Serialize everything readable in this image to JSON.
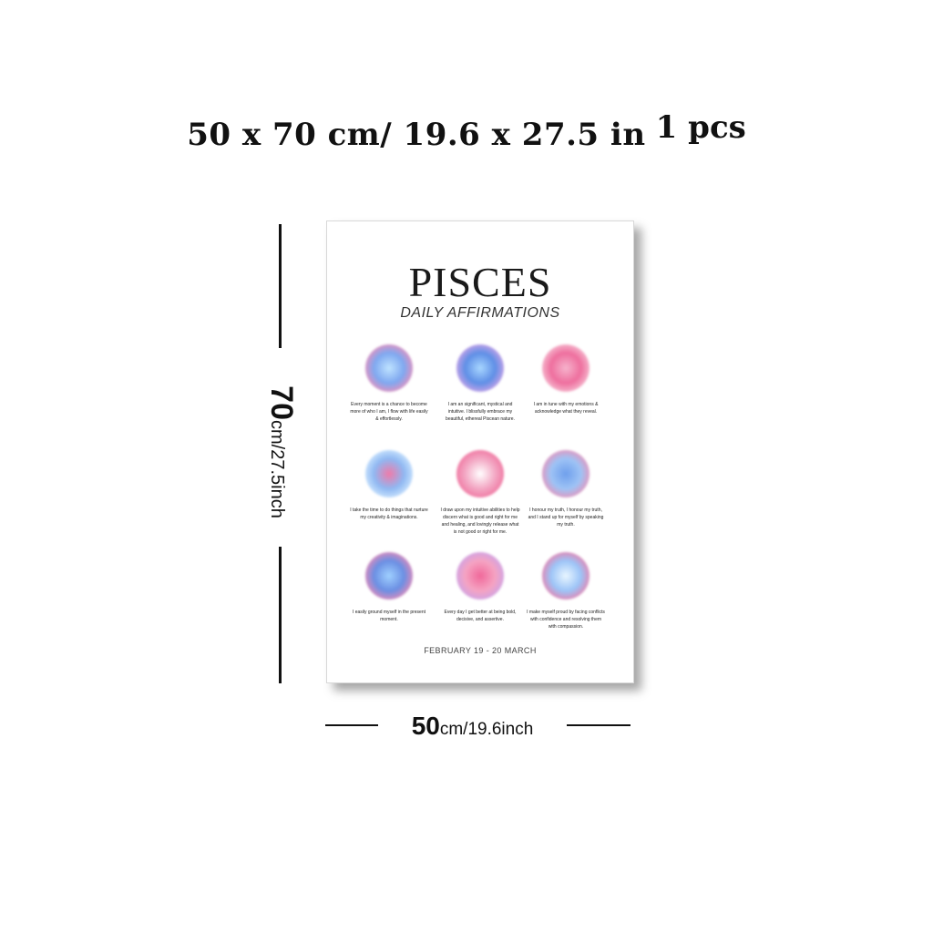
{
  "headline": {
    "size": "50 x 70 cm/ 19.6 x 27.5 in",
    "quantity": "1 pcs"
  },
  "dimensions": {
    "height_value": "70",
    "height_units": "cm/27.5inch",
    "width_value": "50",
    "width_units": "cm/19.6inch"
  },
  "poster": {
    "title": "PISCES",
    "subtitle": "DAILY AFFIRMATIONS",
    "affirmations": [
      {
        "text": "Every moment is a chance to become more of who I am, I flow with life easily & effortlessly.",
        "inner": "#bfe3ff",
        "mid": "#7fa8f0",
        "outer": "#f48fb8"
      },
      {
        "text": "I am an significant, mystical and intuitive. I blissfully embrace my beautiful, ethereal Piscean nature.",
        "inner": "#a8d6ff",
        "mid": "#5f8fe6",
        "outer": "#d9a6e8"
      },
      {
        "text": "I am in tune with my emotions & acknowledge what they reveal.",
        "inner": "#f6b3cc",
        "mid": "#ee6f9e",
        "outer": "#f7c7d8"
      },
      {
        "text": "I take the time to do things that nurture my creativity & imaginations.",
        "inner": "#f07aa8",
        "mid": "#8fb8f2",
        "outer": "#d6ecff"
      },
      {
        "text": "I draw upon my intuitive abilities to help discern what is good and right for me and healing, and lovingly release what is not good or right for me.",
        "inner": "#ffffff",
        "mid": "#f3a8c4",
        "outer": "#ef6f9c"
      },
      {
        "text": "I honour my truth, I honour my truth, and I stand up for myself by speaking my truth.",
        "inner": "#6f9fec",
        "mid": "#9ec3f5",
        "outer": "#f08fb5"
      },
      {
        "text": "I easily ground myself in the present moment.",
        "inner": "#9fd0ff",
        "mid": "#6b8fe3",
        "outer": "#f28bb6"
      },
      {
        "text": "Every day I get better at being bold, decisive, and assertive.",
        "inner": "#f0689a",
        "mid": "#f5a3c2",
        "outer": "#c9a3ea"
      },
      {
        "text": "I make myself proud by facing conflicts with confidence and resolving them with compassion.",
        "inner": "#e9f6ff",
        "mid": "#9cc4f7",
        "outer": "#f17aa6"
      }
    ],
    "date_range": "FEBRUARY 19 - 20 MARCH"
  }
}
